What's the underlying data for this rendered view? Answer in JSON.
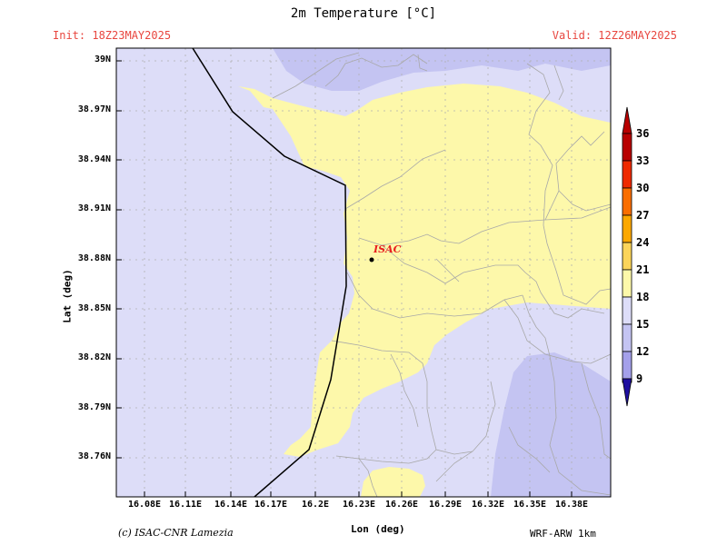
{
  "title": "2m Temperature [°C]",
  "init_text": "Init: 18Z23MAY2025",
  "valid_text": "Valid: 12Z26MAY2025",
  "ylabel": "Lat (deg)",
  "xlabel": "Lon (deg)",
  "credit": "(c) ISAC-CNR Lamezia",
  "model": "WRF-ARW 1km",
  "station_label": "ISAC",
  "lat_ticks": [
    "39N",
    "38.97N",
    "38.94N",
    "38.91N",
    "38.88N",
    "38.85N",
    "38.82N",
    "38.79N",
    "38.76N"
  ],
  "lon_ticks": [
    "16.08E",
    "16.11E",
    "16.14E",
    "16.17E",
    "16.2E",
    "16.23E",
    "16.26E",
    "16.29E",
    "16.32E",
    "16.35E",
    "16.38E"
  ],
  "colorbar": {
    "labels": [
      "36",
      "33",
      "30",
      "27",
      "24",
      "21",
      "18",
      "15",
      "12",
      "9"
    ],
    "colors": [
      "#b80000",
      "#ef2a00",
      "#fa6e00",
      "#fca800",
      "#fbd45a",
      "#fdf8aa",
      "#ddddf8",
      "#c4c4f2",
      "#a4a0ea",
      "#7b6fdc"
    ]
  },
  "map_colors": {
    "band_18_21": "#ddddf8",
    "band_21_24": "#fdf8aa",
    "band_15_18": "#c4c4f2"
  }
}
